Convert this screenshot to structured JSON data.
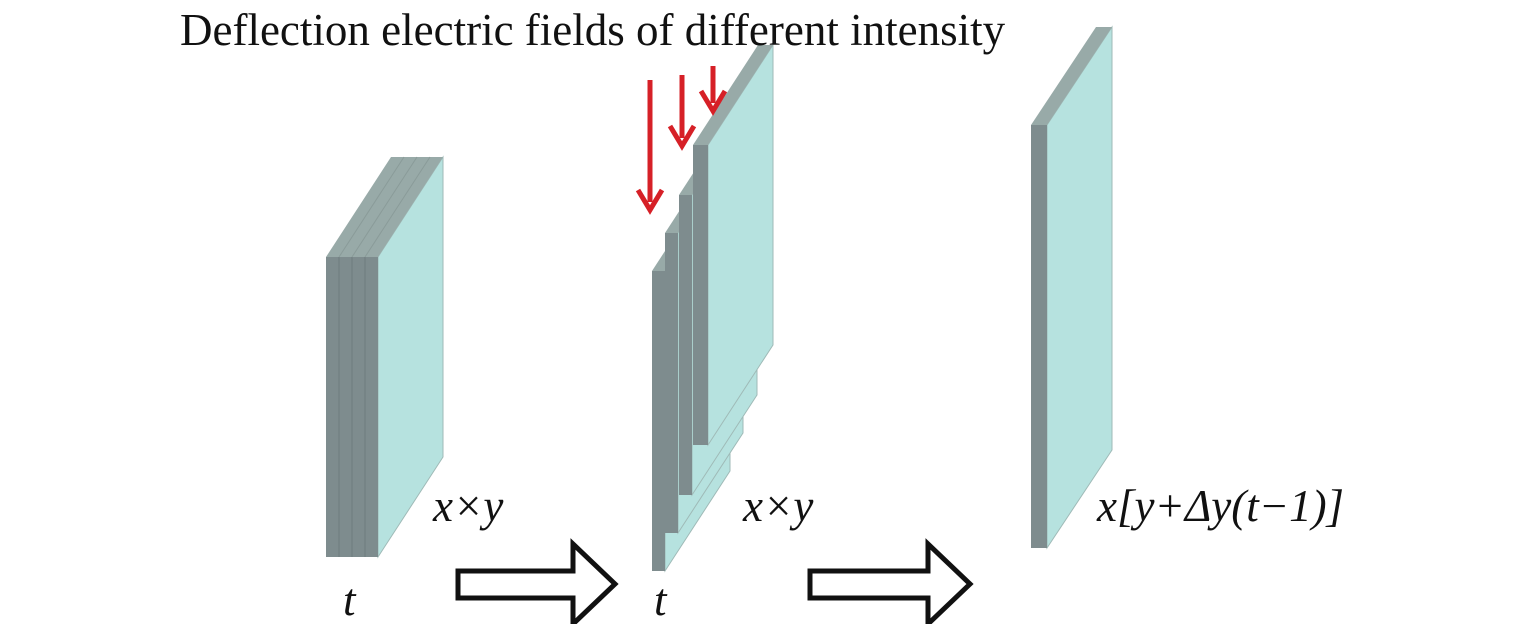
{
  "title": "Deflection electric fields of different intensity",
  "labels": {
    "block1_face": "x×y",
    "block1_depth": "t",
    "block2_face": "x×y",
    "block2_depth": "t",
    "block3_face": "x[y+Δy(t−1)]"
  },
  "colors": {
    "face": "#b6e2df",
    "side": "#7e8c8e",
    "top": "#98aaa8",
    "edge": "#9fbab7",
    "field_arrow": "#d62027",
    "flow_arrow_stroke": "#111111"
  },
  "icons": [
    "red-down-arrow-icon",
    "hollow-right-arrow-icon"
  ]
}
